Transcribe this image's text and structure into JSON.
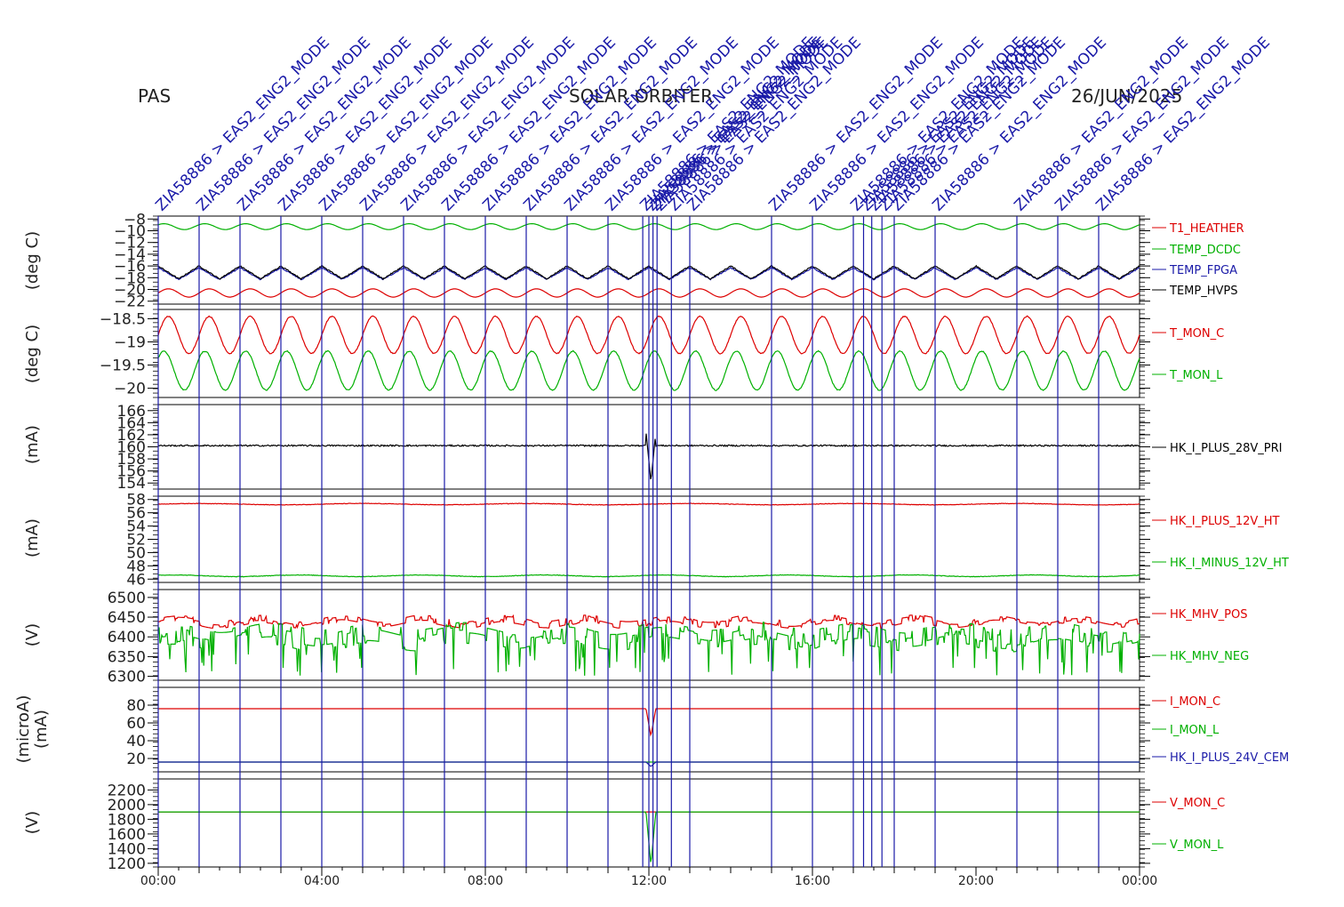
{
  "header": {
    "instrument": "PAS",
    "mission": "SOLAR ORBITER",
    "date": "26/JUN/2025"
  },
  "colors": {
    "red": "#dd0000",
    "green": "#00b000",
    "blue": "#1a1aa8",
    "black": "#000000",
    "event_line": "#1a1aa8",
    "text": "#222222"
  },
  "chart_data": {
    "type": "line",
    "x_axis": {
      "ticks": [
        "00:00",
        "04:00",
        "08:00",
        "12:00",
        "16:00",
        "20:00",
        "00:00"
      ],
      "tick_hours": [
        0,
        4,
        8,
        12,
        16,
        20,
        24
      ],
      "range_hours": [
        0,
        24
      ]
    },
    "events": [
      {
        "hour": 0.0,
        "label": "ZIA58886 > EAS2_ENG2_MODE"
      },
      {
        "hour": 1.0,
        "label": "ZIA58886 > EAS2_ENG2_MODE"
      },
      {
        "hour": 2.0,
        "label": "ZIA58886 > EAS2_ENG2_MODE"
      },
      {
        "hour": 3.0,
        "label": "ZIA58886 > EAS2_ENG2_MODE"
      },
      {
        "hour": 4.0,
        "label": "ZIA58886 > EAS2_ENG2_MODE"
      },
      {
        "hour": 5.0,
        "label": "ZIA58886 > EAS2_ENG2_MODE"
      },
      {
        "hour": 6.0,
        "label": "ZIA58886 > EAS2_ENG2_MODE"
      },
      {
        "hour": 7.0,
        "label": "ZIA58886 > EAS2_ENG2_MODE"
      },
      {
        "hour": 8.0,
        "label": "ZIA58886 > EAS2_ENG2_MODE"
      },
      {
        "hour": 9.0,
        "label": "ZIA58886 > EAS2_ENG2_MODE"
      },
      {
        "hour": 10.0,
        "label": "ZIA58886 > EAS2_ENG2_MODE"
      },
      {
        "hour": 11.0,
        "label": "ZIA58886 > EAS2_ENG2_MODE"
      },
      {
        "hour": 11.85,
        "label": "ZIA58886 > EAS2_ENG2_MODE"
      },
      {
        "hour": 12.0,
        "label": "ZIA58886 > EAS2_ENG2_MODE"
      },
      {
        "hour": 12.1,
        "label": "ZIA58886 > EAS2_ENG2_MODE"
      },
      {
        "hour": 12.2,
        "label": "ZIA58886 > EAS2_ENG2_MODE"
      },
      {
        "hour": 12.55,
        "label": "ZIA58886 > EAS2_ENG2_MODE"
      },
      {
        "hour": 13.0,
        "label": "ZIA58886 > EAS2_ENG2_MODE"
      },
      {
        "hour": 15.0,
        "label": "ZIA58886 > EAS2_ENG2_MODE"
      },
      {
        "hour": 16.0,
        "label": "ZIA58886 > EAS2_ENG2_MODE"
      },
      {
        "hour": 17.0,
        "label": "ZIA58886 > EAS2_ENG2_MODE"
      },
      {
        "hour": 17.25,
        "label": "ZIA58886 > EAS2_ENG2_MODE"
      },
      {
        "hour": 17.45,
        "label": "ZIA58886 > EAS2_ENG2_MODE"
      },
      {
        "hour": 17.7,
        "label": "ZIA58886 > EAS2_ENG2_MODE"
      },
      {
        "hour": 18.0,
        "label": "ZIA58886 > EAS2_ENG2_MODE"
      },
      {
        "hour": 19.0,
        "label": "ZIA58886 > EAS2_ENG2_MODE"
      },
      {
        "hour": 21.0,
        "label": "ZIA58886 > EAS2_ENG2_MODE"
      },
      {
        "hour": 22.0,
        "label": "ZIA58886 > EAS2_ENG2_MODE"
      },
      {
        "hour": 23.0,
        "label": "ZIA58886 > EAS2_ENG2_MODE"
      }
    ],
    "panels": [
      {
        "ylabel": "(deg C)",
        "ylim": [
          -22.5,
          -7.5
        ],
        "ticks": [
          -8,
          -10,
          -12,
          -14,
          -16,
          -18,
          -20,
          -22
        ],
        "series": [
          {
            "name": "T1_HEATHER",
            "color": "red",
            "base": -20.6,
            "amp": 0.7,
            "cycles": 24,
            "noise": 0
          },
          {
            "name": "TEMP_DCDC",
            "color": "green",
            "base": -9.3,
            "amp": 0.5,
            "cycles": 24,
            "noise": 0
          },
          {
            "name": "TEMP_FPGA",
            "color": "blue",
            "base": -17.3,
            "amp": 1.0,
            "cycles": 24,
            "noise": 0.1,
            "wave": "saw"
          },
          {
            "name": "TEMP_HVPS",
            "color": "black",
            "base": -17.1,
            "amp": 1.1,
            "cycles": 24,
            "noise": 0.1,
            "wave": "saw"
          }
        ]
      },
      {
        "ylabel": "(deg C)",
        "ylim": [
          -20.2,
          -18.3
        ],
        "ticks": [
          -18.5,
          -19.0,
          -19.5,
          -20.0
        ],
        "series": [
          {
            "name": "T_MON_C",
            "color": "red",
            "base": -18.85,
            "amp": 0.4,
            "cycles": 24,
            "noise": 0.01
          },
          {
            "name": "T_MON_L",
            "color": "green",
            "base": -19.62,
            "amp": 0.42,
            "cycles": 24,
            "noise": 0.01
          }
        ]
      },
      {
        "ylabel": "(mA)",
        "ylim": [
          153,
          167
        ],
        "ticks": [
          166,
          164,
          162,
          160,
          158,
          156,
          154
        ],
        "series": [
          {
            "name": "HK_I_PLUS_28V_PRI",
            "color": "black",
            "base": 160.2,
            "amp": 0,
            "cycles": 24,
            "noise": 0.12,
            "spike": {
              "hour": 12.05,
              "min": 154.2,
              "max": 162.5
            }
          }
        ]
      },
      {
        "ylabel": "(mA)",
        "ylim": [
          45.5,
          58.5
        ],
        "ticks": [
          58,
          56,
          54,
          52,
          50,
          48,
          46
        ],
        "series": [
          {
            "name": "HK_I_PLUS_12V_HT",
            "color": "red",
            "base": 57.3,
            "amp": 0.1,
            "cycles": 6,
            "noise": 0.04
          },
          {
            "name": "HK_I_MINUS_12V_HT",
            "color": "green",
            "base": 46.5,
            "amp": 0.12,
            "cycles": 8,
            "noise": 0.04
          }
        ]
      },
      {
        "ylabel": "(V)",
        "ylim": [
          6290,
          6520
        ],
        "ticks": [
          6500,
          6450,
          6400,
          6350,
          6300
        ],
        "series": [
          {
            "name": "HK_MHV_POS",
            "color": "red",
            "base": 6438,
            "amp": 8,
            "cycles": 12,
            "noise": 10,
            "steps": true
          },
          {
            "name": "HK_MHV_NEG",
            "color": "green",
            "base": 6400,
            "amp": 10,
            "cycles": 10,
            "noise": 30,
            "steps": true,
            "dips": 6300
          }
        ]
      },
      {
        "ylabel": "(microA)\n(mA)",
        "ylim": [
          5,
          100
        ],
        "ticks": [
          80,
          60,
          40,
          20
        ],
        "series": [
          {
            "name": "I_MON_C",
            "color": "red",
            "base": 76,
            "amp": 0,
            "cycles": 1,
            "noise": 0,
            "spike": {
              "hour": 12.05,
              "min": 45,
              "max": 76
            }
          },
          {
            "name": "I_MON_L",
            "color": "green",
            "base": 16,
            "amp": 0,
            "cycles": 1,
            "noise": 0
          },
          {
            "name": "HK_I_PLUS_24V_CEM",
            "color": "blue",
            "base": 16,
            "amp": 0,
            "cycles": 1,
            "noise": 0,
            "spike": {
              "hour": 12.05,
              "min": 11,
              "max": 16
            }
          }
        ]
      },
      {
        "ylabel": "(V)",
        "ylim": [
          1150,
          2350
        ],
        "ticks": [
          2200,
          2000,
          1800,
          1600,
          1400,
          1200
        ],
        "series": [
          {
            "name": "V_MON_C",
            "color": "red",
            "base": 1900,
            "amp": 0,
            "cycles": 1,
            "noise": 0
          },
          {
            "name": "V_MON_L",
            "color": "green",
            "base": 1900,
            "amp": 0,
            "cycles": 1,
            "noise": 0,
            "spike": {
              "hour": 12.05,
              "min": 1180,
              "max": 1900
            }
          }
        ]
      }
    ]
  }
}
